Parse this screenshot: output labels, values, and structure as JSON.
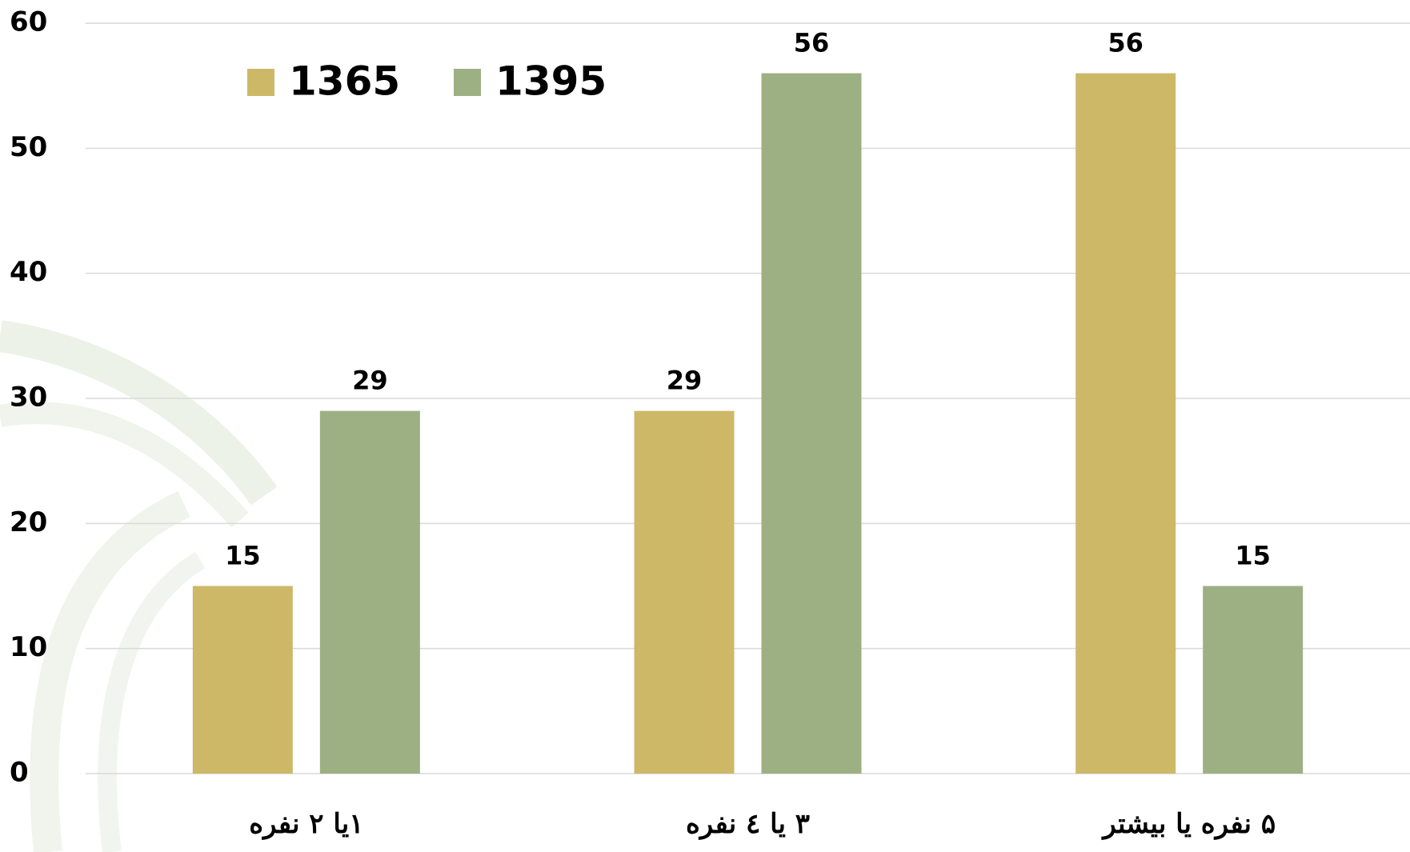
{
  "chart_data": {
    "type": "bar",
    "categories": [
      "۱یا ۲ نفره",
      "۳ یا ٤ نفره",
      "۵ نفره یا بیشتر"
    ],
    "series": [
      {
        "name": "1365",
        "color": "#cdb867",
        "label_color": "#1f73c1",
        "values": [
          15,
          29,
          56
        ]
      },
      {
        "name": "1395",
        "color": "#9db083",
        "label_color": "#c00000",
        "values": [
          29,
          56,
          15
        ]
      }
    ],
    "ylim": [
      0,
      60
    ],
    "yticks": [
      0,
      10,
      20,
      30,
      40,
      50,
      60
    ],
    "grid": true,
    "legend": "top-left"
  }
}
